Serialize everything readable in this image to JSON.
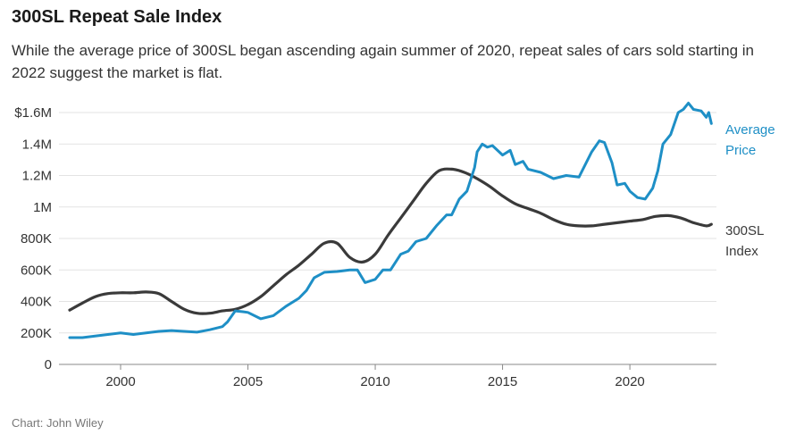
{
  "chart_data": {
    "type": "line",
    "title": "300SL Repeat Sale Index",
    "subtitle": "While the average price of 300SL began ascending again summer of 2020, repeat sales of cars sold starting in 2022 suggest the market is flat.",
    "source": "Chart: John Wiley",
    "xlabel": "",
    "ylabel": "",
    "xlim": [
      1998,
      2023.4
    ],
    "ylim": [
      0,
      1600000
    ],
    "grid": true,
    "x_ticks": [
      {
        "value": 2000,
        "label": "2000"
      },
      {
        "value": 2005,
        "label": "2005"
      },
      {
        "value": 2010,
        "label": "2010"
      },
      {
        "value": 2015,
        "label": "2015"
      },
      {
        "value": 2020,
        "label": "2020"
      }
    ],
    "y_ticks": [
      {
        "value": 0,
        "label": "0"
      },
      {
        "value": 200000,
        "label": "200K"
      },
      {
        "value": 400000,
        "label": "400K"
      },
      {
        "value": 600000,
        "label": "600K"
      },
      {
        "value": 800000,
        "label": "800K"
      },
      {
        "value": 1000000,
        "label": "1M"
      },
      {
        "value": 1200000,
        "label": "1.2M"
      },
      {
        "value": 1400000,
        "label": "1.4M"
      },
      {
        "value": 1600000,
        "label": "$1.6M"
      }
    ],
    "series": [
      {
        "name": "300SL Index",
        "label_lines": [
          "300SL",
          "Index"
        ],
        "color": "#3a3a3a",
        "x": [
          1998.0,
          1998.5,
          1999.0,
          1999.5,
          2000.0,
          2000.5,
          2001.0,
          2001.5,
          2002.0,
          2002.5,
          2003.0,
          2003.5,
          2004.0,
          2004.5,
          2005.0,
          2005.5,
          2006.0,
          2006.5,
          2007.0,
          2007.5,
          2008.0,
          2008.5,
          2009.0,
          2009.5,
          2010.0,
          2010.5,
          2011.0,
          2011.5,
          2012.0,
          2012.5,
          2013.0,
          2013.5,
          2014.0,
          2014.5,
          2015.0,
          2015.5,
          2016.0,
          2016.5,
          2017.0,
          2017.5,
          2018.0,
          2018.5,
          2019.0,
          2019.5,
          2020.0,
          2020.5,
          2021.0,
          2021.5,
          2022.0,
          2022.5,
          2023.0,
          2023.2
        ],
        "values": [
          345000,
          390000,
          430000,
          450000,
          455000,
          455000,
          460000,
          450000,
          400000,
          350000,
          325000,
          325000,
          340000,
          350000,
          380000,
          430000,
          500000,
          570000,
          630000,
          700000,
          770000,
          770000,
          680000,
          650000,
          700000,
          820000,
          930000,
          1040000,
          1150000,
          1230000,
          1240000,
          1220000,
          1180000,
          1130000,
          1070000,
          1020000,
          990000,
          960000,
          920000,
          890000,
          880000,
          880000,
          890000,
          900000,
          910000,
          920000,
          940000,
          945000,
          930000,
          900000,
          880000,
          890000
        ]
      },
      {
        "name": "Average Price",
        "label_lines": [
          "Average",
          "Price"
        ],
        "color": "#1e8fc6",
        "x": [
          1998.0,
          1998.5,
          1999.0,
          1999.5,
          2000.0,
          2000.5,
          2001.0,
          2001.5,
          2002.0,
          2002.5,
          2003.0,
          2003.5,
          2004.0,
          2004.2,
          2004.5,
          2004.8,
          2005.0,
          2005.5,
          2006.0,
          2006.5,
          2007.0,
          2007.3,
          2007.6,
          2008.0,
          2008.5,
          2009.0,
          2009.3,
          2009.6,
          2010.0,
          2010.3,
          2010.6,
          2011.0,
          2011.3,
          2011.6,
          2012.0,
          2012.4,
          2012.8,
          2013.0,
          2013.3,
          2013.6,
          2013.9,
          2014.0,
          2014.2,
          2014.4,
          2014.6,
          2015.0,
          2015.3,
          2015.5,
          2015.8,
          2016.0,
          2016.5,
          2017.0,
          2017.5,
          2018.0,
          2018.5,
          2018.8,
          2019.0,
          2019.3,
          2019.5,
          2019.8,
          2020.0,
          2020.3,
          2020.6,
          2020.9,
          2021.1,
          2021.3,
          2021.6,
          2021.9,
          2022.1,
          2022.3,
          2022.5,
          2022.8,
          2023.0,
          2023.1,
          2023.2
        ],
        "values": [
          170000,
          170000,
          180000,
          190000,
          200000,
          190000,
          200000,
          210000,
          215000,
          210000,
          205000,
          220000,
          240000,
          270000,
          340000,
          335000,
          330000,
          290000,
          310000,
          370000,
          420000,
          470000,
          550000,
          585000,
          590000,
          600000,
          600000,
          520000,
          540000,
          600000,
          600000,
          700000,
          720000,
          780000,
          800000,
          880000,
          950000,
          950000,
          1050000,
          1100000,
          1250000,
          1350000,
          1400000,
          1380000,
          1390000,
          1330000,
          1360000,
          1270000,
          1290000,
          1240000,
          1220000,
          1180000,
          1200000,
          1190000,
          1350000,
          1420000,
          1410000,
          1280000,
          1140000,
          1150000,
          1100000,
          1060000,
          1050000,
          1120000,
          1230000,
          1400000,
          1460000,
          1600000,
          1620000,
          1660000,
          1620000,
          1610000,
          1570000,
          1600000,
          1530000
        ]
      }
    ]
  }
}
